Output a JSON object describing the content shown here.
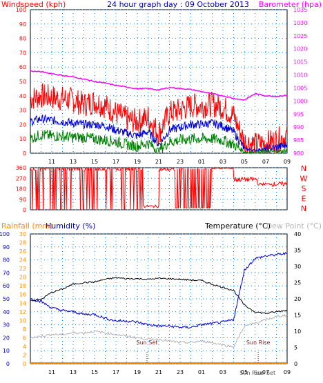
{
  "title": "24 hour graph day : 09 October 2013",
  "colors": {
    "windspeed": "#ff0000",
    "wind_avg": "#0000cc",
    "wind_low": "#008000",
    "barometer": "#ff00ff",
    "direction": "#ff0000",
    "rainfall": "#ff8c00",
    "humidity": "#0000cc",
    "temperature": "#000000",
    "dewpoint": "#b4b4b4",
    "grid": "#0080ff"
  },
  "time_labels": [
    "11",
    "13",
    "15",
    "17",
    "19",
    "21",
    "23",
    "01",
    "03",
    "05",
    "07",
    "09"
  ],
  "chart_data": [
    {
      "type": "line",
      "name": "wind-barometer",
      "ylabel_left": "Windspeed (kph)",
      "ylabel_right": "Barometer (hpa)",
      "y_left": {
        "lim": [
          0,
          100
        ],
        "ticks": [
          "0",
          "10",
          "20",
          "30",
          "40",
          "50",
          "60",
          "70",
          "80",
          "90",
          "100"
        ]
      },
      "y_right": {
        "lim": [
          980,
          1035
        ],
        "ticks": [
          "980",
          "985",
          "990",
          "995",
          "1000",
          "1005",
          "1010",
          "1015",
          "1020",
          "1025",
          "1030",
          "1035"
        ]
      },
      "x_hours": [
        9,
        10,
        11,
        12,
        13,
        14,
        15,
        16,
        17,
        18,
        19,
        20,
        21,
        22,
        23,
        24,
        25,
        26,
        27,
        28,
        29,
        30,
        31,
        32,
        33
      ],
      "series": [
        {
          "name": "Windspeed (kph)",
          "axis": "left",
          "values": [
            38,
            40,
            39,
            38,
            37,
            34,
            36,
            33,
            28,
            24,
            22,
            25,
            14,
            28,
            30,
            33,
            33,
            34,
            32,
            26,
            8,
            6,
            7,
            9,
            12
          ]
        },
        {
          "name": "",
          "axis": "left",
          "values": [
            22,
            24,
            23,
            22,
            21,
            20,
            20,
            19,
            16,
            14,
            12,
            15,
            6,
            16,
            18,
            20,
            20,
            21,
            19,
            15,
            3,
            2,
            3,
            4,
            6
          ]
        },
        {
          "name": "",
          "axis": "left",
          "values": [
            10,
            13,
            12,
            12,
            11,
            11,
            10,
            9,
            8,
            6,
            5,
            7,
            2,
            8,
            9,
            10,
            10,
            10,
            9,
            6,
            1,
            0,
            1,
            1,
            2
          ]
        },
        {
          "name": "Barometer (hpa)",
          "axis": "right",
          "values": [
            1011.5,
            1011.2,
            1010.5,
            1009.8,
            1009.2,
            1008.4,
            1007.5,
            1006.8,
            1006.0,
            1005.3,
            1004.7,
            1004.8,
            1004.2,
            1005.2,
            1004.8,
            1004.4,
            1003.6,
            1002.8,
            1002.0,
            1001.0,
            1000.4,
            1002.8,
            1002.0,
            1001.8,
            1002.2
          ]
        }
      ]
    },
    {
      "type": "line",
      "name": "wind-direction",
      "y_left": {
        "lim": [
          0,
          360
        ],
        "ticks": [
          "0",
          "90",
          "180",
          "270",
          "360"
        ]
      },
      "direction_labels": [
        "N",
        "W",
        "S",
        "E",
        "N"
      ]
    },
    {
      "type": "line",
      "name": "rain-humidity-temperature",
      "ylabel_rain": "Rainfall (mm)",
      "ylabel_humidity": "Humidity (%)",
      "ylabel_temp": "Temperature (°C)",
      "ylabel_dew": "Dew Point (°C)",
      "y_humidity": {
        "lim": [
          0,
          100
        ],
        "ticks": [
          "0",
          "10",
          "20",
          "30",
          "40",
          "50",
          "60",
          "70",
          "80",
          "90",
          "100"
        ]
      },
      "y_rain": {
        "lim": [
          0,
          30
        ],
        "ticks": [
          "0",
          "2",
          "4",
          "6",
          "8",
          "10",
          "12",
          "14",
          "16",
          "18",
          "20",
          "22",
          "24",
          "26",
          "28",
          "30"
        ]
      },
      "y_temp": {
        "lim": [
          0,
          40
        ],
        "ticks": [
          "0",
          "5",
          "10",
          "15",
          "20",
          "25",
          "30",
          "35",
          "40"
        ]
      },
      "x_hours": [
        9,
        10,
        11,
        12,
        13,
        14,
        15,
        16,
        17,
        18,
        19,
        20,
        21,
        22,
        23,
        24,
        25,
        26,
        27,
        28,
        29,
        30,
        31,
        32,
        33
      ],
      "annotations": [
        {
          "label": "Sun Set",
          "hour": 19.9
        },
        {
          "label": "Sun Rise",
          "hour": 30.3
        },
        {
          "label": "Sun Rise",
          "hour": 30.2
        },
        {
          "label": "Sun Set",
          "hour": 30.4
        }
      ],
      "series": [
        {
          "name": "Temperature (°C)",
          "axis": "temp",
          "values": [
            19.5,
            19.8,
            22,
            23,
            24.5,
            25,
            25.2,
            26,
            26.5,
            26.2,
            26.2,
            26,
            26.3,
            26.2,
            26,
            25.8,
            25.6,
            24.5,
            23.5,
            22.6,
            18,
            16,
            15.5,
            16,
            16.5
          ]
        },
        {
          "name": "Humidity (%)",
          "axis": "humidity",
          "values": [
            50,
            48,
            43,
            41,
            40,
            38,
            38,
            35,
            33,
            33,
            32,
            30,
            29,
            29,
            28,
            28,
            30,
            31,
            32,
            34,
            72,
            81,
            83,
            84,
            85
          ]
        },
        {
          "name": "Dew Point (°C)",
          "axis": "temp",
          "values": [
            8,
            8.5,
            9,
            9,
            9.5,
            9.5,
            10,
            9.5,
            9,
            8.5,
            8,
            7.5,
            7.5,
            7,
            6.5,
            6.5,
            7,
            6.5,
            5.8,
            5.2,
            11.5,
            12.5,
            13.5,
            14.5,
            15
          ]
        },
        {
          "name": "Rainfall (mm)",
          "axis": "rain",
          "values": [
            0,
            0,
            0,
            0,
            0,
            0,
            0,
            0,
            0,
            0,
            0,
            0,
            0,
            0,
            0,
            0,
            0,
            0,
            0,
            0,
            0,
            0,
            0,
            0,
            0
          ]
        }
      ]
    }
  ]
}
